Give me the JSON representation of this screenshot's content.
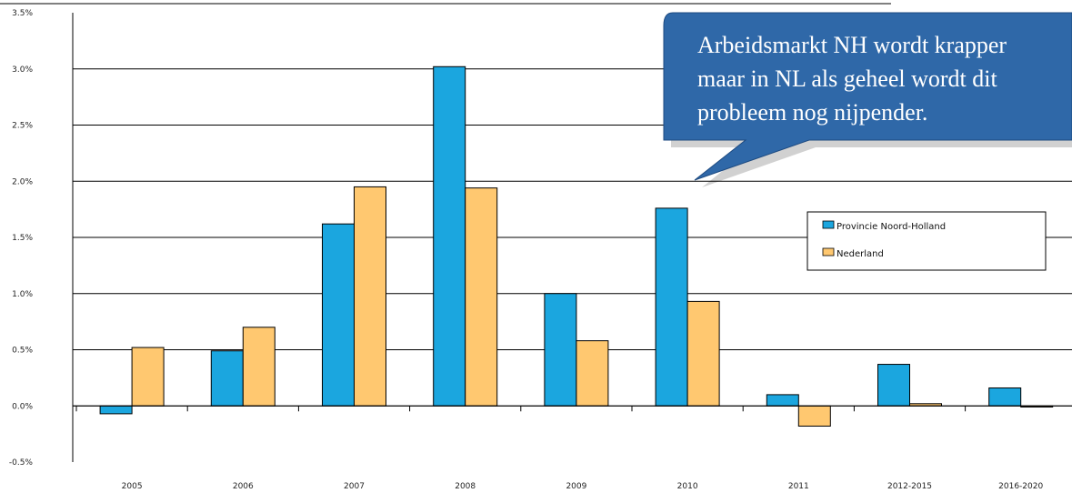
{
  "colors": {
    "noord_holland": "#1BA6DF",
    "nederland": "#FFC870",
    "bar_edge": "#000000",
    "gridline": "#000000",
    "callout_fill": "#2F68A8",
    "callout_text": "#FFFFFF"
  },
  "callout": {
    "lines": [
      "Arbeidsmarkt NH wordt krapper",
      "maar in NL als geheel wordt dit",
      "probleem nog nijpender."
    ]
  },
  "chart_data": {
    "type": "bar",
    "categories": [
      "2005",
      "2006",
      "2007",
      "2008",
      "2009",
      "2010",
      "2011",
      "2012-2015",
      "2016-2020"
    ],
    "series": [
      {
        "name": "Provincie Noord-Holland",
        "values": [
          -0.07,
          0.49,
          1.62,
          3.02,
          1.0,
          1.76,
          0.1,
          0.37,
          0.16
        ]
      },
      {
        "name": "Nederland",
        "values": [
          0.52,
          0.7,
          1.95,
          1.94,
          0.58,
          0.93,
          -0.18,
          0.02,
          -0.01
        ]
      }
    ],
    "yticks": [
      "-0.5%",
      "0.0%",
      "0.5%",
      "1.0%",
      "1.5%",
      "2.0%",
      "2.5%",
      "3.0%",
      "3.5%"
    ],
    "ylim": [
      -0.5,
      3.5
    ],
    "grid": true,
    "legend_position": "right",
    "xlabel": "",
    "ylabel": ""
  }
}
